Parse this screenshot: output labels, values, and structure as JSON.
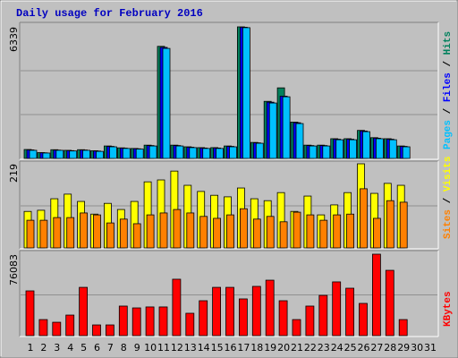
{
  "chart_data": [
    {
      "type": "bar",
      "title": "Daily usage for February 2016",
      "ylim": [
        0,
        6339
      ],
      "yticks": [
        6339
      ],
      "grid_divisions": 3,
      "legend_separator": " / ",
      "series": [
        {
          "name": "Hits",
          "color": "#00805c",
          "values": [
            430,
            280,
            420,
            390,
            420,
            370,
            600,
            510,
            480,
            640,
            5400,
            640,
            560,
            520,
            520,
            600,
            6339,
            770,
            2750,
            3400,
            1750,
            640,
            640,
            950,
            950,
            1350,
            1000,
            950,
            600,
            null,
            null
          ]
        },
        {
          "name": "Files",
          "color": "#0000ff",
          "values": [
            410,
            270,
            400,
            375,
            405,
            355,
            580,
            495,
            465,
            620,
            5350,
            620,
            540,
            500,
            500,
            580,
            6320,
            750,
            2710,
            3000,
            1720,
            620,
            620,
            925,
            925,
            1320,
            975,
            925,
            580,
            null,
            null
          ]
        },
        {
          "name": "Pages",
          "color": "#00c0ff",
          "values": [
            390,
            260,
            390,
            360,
            390,
            340,
            560,
            480,
            450,
            600,
            5300,
            600,
            520,
            480,
            480,
            560,
            6300,
            730,
            2670,
            2970,
            1680,
            600,
            600,
            900,
            900,
            1290,
            950,
            900,
            560,
            null,
            null
          ]
        }
      ]
    },
    {
      "type": "bar",
      "ylim": [
        0,
        219
      ],
      "yticks": [
        219
      ],
      "grid_divisions": 2,
      "legend_separator": " / ",
      "series": [
        {
          "name": "Visits",
          "color": "#ffff00",
          "values": [
            95,
            98,
            128,
            140,
            121,
            88,
            116,
            100,
            121,
            172,
            177,
            200,
            163,
            147,
            137,
            133,
            156,
            128,
            123,
            144,
            95,
            135,
            86,
            112,
            144,
            219,
            142,
            168,
            163,
            null,
            null
          ]
        },
        {
          "name": "Sites",
          "color": "#ff8000",
          "values": [
            72,
            72,
            79,
            79,
            91,
            86,
            65,
            75,
            63,
            86,
            91,
            100,
            91,
            82,
            77,
            86,
            102,
            75,
            82,
            68,
            93,
            86,
            72,
            86,
            88,
            154,
            77,
            123,
            119,
            null,
            null
          ]
        }
      ]
    },
    {
      "type": "bar",
      "ylim": [
        0,
        76083
      ],
      "yticks": [
        76083
      ],
      "grid_divisions": 2,
      "categories": [
        "1",
        "2",
        "3",
        "4",
        "5",
        "6",
        "7",
        "8",
        "9",
        "10",
        "11",
        "12",
        "13",
        "14",
        "15",
        "16",
        "17",
        "18",
        "19",
        "20",
        "21",
        "22",
        "23",
        "24",
        "25",
        "26",
        "27",
        "28",
        "29",
        "30",
        "31"
      ],
      "label_colors": [
        "#000000",
        "#000000",
        "#000000",
        "#000000",
        "#000000",
        "#008040",
        "#008040",
        "#000000",
        "#000000",
        "#000000",
        "#000000",
        "#000000",
        "#008040",
        "#008040",
        "#000000",
        "#000000",
        "#000000",
        "#000000",
        "#000000",
        "#008040",
        "#008040",
        "#000000",
        "#000000",
        "#000000",
        "#000000",
        "#000000",
        "#008040",
        "#008040",
        "#000000",
        "#000000",
        "#000000"
      ],
      "series": [
        {
          "name": "KBytes",
          "color": "#ff0000",
          "values": [
            41800,
            15000,
            12500,
            19200,
            45100,
            10000,
            10000,
            27600,
            25900,
            26800,
            26800,
            52700,
            20900,
            32600,
            45100,
            45100,
            34300,
            46000,
            51800,
            32600,
            15000,
            27600,
            37600,
            50200,
            44300,
            30100,
            76083,
            61000,
            15000,
            null,
            null
          ]
        }
      ]
    }
  ]
}
